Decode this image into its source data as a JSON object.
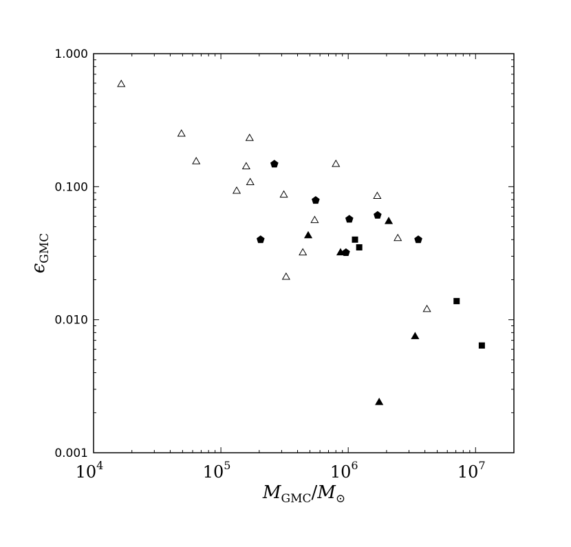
{
  "chart_data": {
    "type": "scatter",
    "title": "",
    "xscale": "log",
    "yscale": "log",
    "xlim": [
      10000,
      20000000
    ],
    "ylim": [
      0.001,
      1.0
    ],
    "grid": false,
    "xlabel": {
      "main": "M",
      "sub": "GMC",
      "slash": "/",
      "main2": "M",
      "sub2": "⊙"
    },
    "ylabel": {
      "main": "ϵ",
      "sub": "GMC"
    },
    "x_ticks": [
      {
        "value": 10000,
        "base": "10",
        "exp": "4"
      },
      {
        "value": 100000,
        "base": "10",
        "exp": "5"
      },
      {
        "value": 1000000,
        "base": "10",
        "exp": "6"
      },
      {
        "value": 10000000,
        "base": "10",
        "exp": "7"
      }
    ],
    "y_ticks": [
      {
        "value": 0.001,
        "label": "0.001"
      },
      {
        "value": 0.01,
        "label": "0.010"
      },
      {
        "value": 0.1,
        "label": "0.100"
      },
      {
        "value": 1.0,
        "label": "1.000"
      }
    ],
    "series": [
      {
        "marker": "open-triangle",
        "points": [
          [
            16500,
            0.59
          ],
          [
            49000,
            0.25
          ],
          [
            64000,
            0.155
          ],
          [
            168000,
            0.232
          ],
          [
            158000,
            0.142
          ],
          [
            170000,
            0.108
          ],
          [
            133000,
            0.093
          ],
          [
            312000,
            0.087
          ],
          [
            800000,
            0.148
          ],
          [
            545000,
            0.056
          ],
          [
            440000,
            0.032
          ],
          [
            325000,
            0.021
          ],
          [
            1690000,
            0.085
          ],
          [
            2450000,
            0.041
          ],
          [
            4150000,
            0.012
          ]
        ]
      },
      {
        "marker": "filled-pentagon",
        "points": [
          [
            263000,
            0.148
          ],
          [
            555000,
            0.079
          ],
          [
            205000,
            0.04
          ],
          [
            1020000,
            0.057
          ],
          [
            1700000,
            0.061
          ],
          [
            3550000,
            0.04
          ],
          [
            960000,
            0.032
          ]
        ]
      },
      {
        "marker": "filled-triangle",
        "points": [
          [
            485000,
            0.043
          ],
          [
            870000,
            0.032
          ],
          [
            2080000,
            0.055
          ],
          [
            3350000,
            0.0075
          ],
          [
            1750000,
            0.0024
          ]
        ]
      },
      {
        "marker": "filled-square",
        "points": [
          [
            1130000,
            0.04
          ],
          [
            1220000,
            0.035
          ],
          [
            7100000,
            0.0138
          ],
          [
            11200000,
            0.0064
          ]
        ]
      }
    ]
  }
}
